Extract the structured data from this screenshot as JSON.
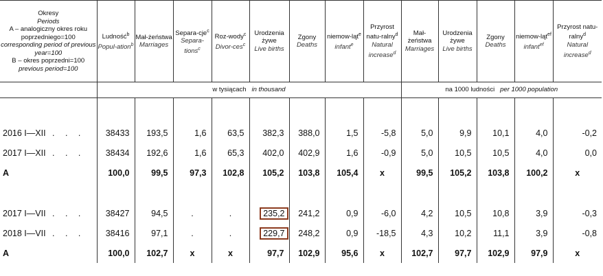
{
  "header": {
    "period": {
      "title": "Okresy",
      "subtitle": "Periods",
      "a_def": "A – analogiczny okres roku poprzedniego=100",
      "a_def_en": "corresponding period of previous year=100",
      "b_def": "B – okres poprzedni=100",
      "b_def_en": "previous period=100"
    },
    "columns": [
      {
        "pl": "Ludność",
        "sup": "b",
        "en": "Popul-ation",
        "en_sup": "b"
      },
      {
        "pl": "Mał-żeństwa",
        "en": "Marriages"
      },
      {
        "pl": "Separa-cje",
        "sup": "c",
        "en": "Separa-tions",
        "en_sup": "c"
      },
      {
        "pl": "Roz-wody",
        "sup": "c",
        "en": "Divor-ces",
        "en_sup": "c"
      },
      {
        "pl": "Urodzenia żywe",
        "en": "Live births"
      },
      {
        "pl": "Zgony",
        "en": "Deaths"
      },
      {
        "pl": "niemow-ląt",
        "sup": "e",
        "en": "infant",
        "en_sup": "e"
      },
      {
        "pl": "Przyrost natu-ralny",
        "sup": "d",
        "en": "Natural increase",
        "en_sup": "d"
      },
      {
        "pl": "Mał-żeństwa",
        "en": "Marriages"
      },
      {
        "pl": "Urodzenia żywe",
        "en": "Live births"
      },
      {
        "pl": "Zgony",
        "en": "Deaths"
      },
      {
        "pl": "niemow-ląt",
        "sup": "ef",
        "en": "infant",
        "en_sup": "ef"
      },
      {
        "pl": "Przyrost natu-ralny",
        "sup": "d",
        "en": "Natural increase",
        "en_sup": "d"
      }
    ],
    "unit_left_pl": "w tysiącach",
    "unit_left_en": "in thousand",
    "unit_right_pl": "na 1000 ludności",
    "unit_right_en": "per 1000 population"
  },
  "rows": [
    {
      "label": "2016  I—XII",
      "dots": ". . .",
      "values": [
        "38433",
        "193,5",
        "1,6",
        "63,5",
        "382,3",
        "388,0",
        "1,5",
        "-5,8",
        "5,0",
        "9,9",
        "10,1",
        "4,0",
        "-0,2"
      ]
    },
    {
      "label": "2017  I—XII",
      "dots": ". . .",
      "values": [
        "38434",
        "192,6",
        "1,6",
        "65,3",
        "402,0",
        "402,9",
        "1,6",
        "-0,9",
        "5,0",
        "10,5",
        "10,5",
        "4,0",
        "0,0"
      ]
    },
    {
      "label": "A",
      "bold": true,
      "values": [
        "100,0",
        "99,5",
        "97,3",
        "102,8",
        "105,2",
        "103,8",
        "105,4",
        "x",
        "99,5",
        "105,2",
        "103,8",
        "100,2",
        "x"
      ]
    },
    {
      "label": "2017  I—VII",
      "dots": ". . .",
      "values": [
        "38427",
        "94,5",
        ".",
        ".",
        "235,2",
        "241,2",
        "0,9",
        "-6,0",
        "4,2",
        "10,5",
        "10,8",
        "3,9",
        "-0,3"
      ],
      "highlight": 4
    },
    {
      "label": "2018  I—VII",
      "dots": ". . .",
      "values": [
        "38416",
        "97,1",
        ".",
        ".",
        "229,7",
        "248,2",
        "0,9",
        "-18,5",
        "4,3",
        "10,2",
        "11,1",
        "3,9",
        "-0,8"
      ],
      "highlight": 4
    },
    {
      "label": "A",
      "bold": true,
      "values": [
        "100,0",
        "102,7",
        "x",
        "x",
        "97,7",
        "102,9",
        "95,6",
        "x",
        "102,7",
        "97,7",
        "102,9",
        "97,9",
        "x"
      ]
    }
  ]
}
